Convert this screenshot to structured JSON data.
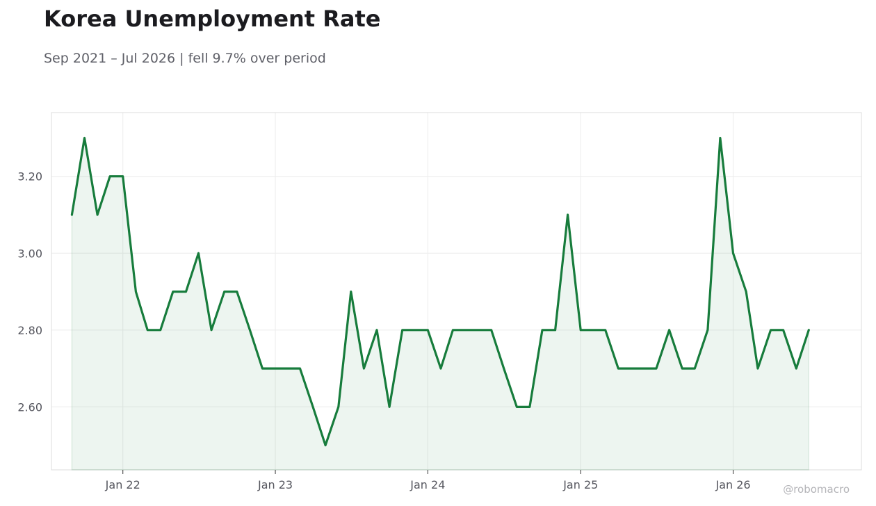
{
  "title": "Korea Unemployment Rate",
  "subtitle": "Sep 2021 – Jul 2026 | fell 9.7% over period",
  "watermark": "@robomacro",
  "colors": {
    "line": "#177c3c",
    "fill": "#177c3c",
    "grid": "#ececec",
    "frame": "#dcdcdc"
  },
  "chart_data": {
    "type": "area",
    "title": "Korea Unemployment Rate",
    "subtitle": "Sep 2021 – Jul 2026 | fell 9.7% over period",
    "xlabel": "",
    "ylabel": "",
    "grid": true,
    "legend": "none",
    "ylim": [
      2.436,
      3.366
    ],
    "xlim": [
      "2021-07-14",
      "2026-11-04"
    ],
    "x_ticks": [
      {
        "date": "2022-01-01",
        "label": "Jan 22"
      },
      {
        "date": "2023-01-01",
        "label": "Jan 23"
      },
      {
        "date": "2024-01-01",
        "label": "Jan 24"
      },
      {
        "date": "2025-01-01",
        "label": "Jan 25"
      },
      {
        "date": "2026-01-01",
        "label": "Jan 26"
      }
    ],
    "y_ticks": [
      {
        "value": 2.6,
        "label": "2.60"
      },
      {
        "value": 2.8,
        "label": "2.80"
      },
      {
        "value": 3.0,
        "label": "3.00"
      },
      {
        "value": 3.2,
        "label": "3.20"
      }
    ],
    "x": [
      "2021-09",
      "2021-10",
      "2021-11",
      "2021-12",
      "2022-01",
      "2022-02",
      "2022-03",
      "2022-04",
      "2022-05",
      "2022-06",
      "2022-07",
      "2022-08",
      "2022-09",
      "2022-10",
      "2022-11",
      "2022-12",
      "2023-01",
      "2023-02",
      "2023-03",
      "2023-04",
      "2023-05",
      "2023-06",
      "2023-07",
      "2023-08",
      "2023-09",
      "2023-10",
      "2023-11",
      "2023-12",
      "2024-01",
      "2024-02",
      "2024-03",
      "2024-04",
      "2024-05",
      "2024-06",
      "2024-07",
      "2024-08",
      "2024-09",
      "2024-10",
      "2024-11",
      "2024-12",
      "2025-01",
      "2025-02",
      "2025-03",
      "2025-04",
      "2025-05",
      "2025-06",
      "2025-07",
      "2025-08",
      "2025-09",
      "2025-10",
      "2025-11",
      "2025-12",
      "2026-01",
      "2026-02",
      "2026-03",
      "2026-04",
      "2026-05",
      "2026-06",
      "2026-07"
    ],
    "series": [
      {
        "values": [
          3.1,
          3.3,
          3.1,
          3.2,
          3.2,
          2.9,
          2.8,
          2.8,
          2.9,
          2.9,
          3.0,
          2.8,
          2.9,
          2.9,
          2.8,
          2.7,
          2.7,
          2.7,
          2.7,
          2.6,
          2.5,
          2.6,
          2.9,
          2.7,
          2.8,
          2.6,
          2.8,
          2.8,
          2.8,
          2.7,
          2.8,
          2.8,
          2.8,
          2.8,
          2.7,
          2.6,
          2.6,
          2.8,
          2.8,
          3.1,
          2.8,
          2.8,
          2.8,
          2.7,
          2.7,
          2.7,
          2.7,
          2.8,
          2.7,
          2.7,
          2.8,
          3.3,
          3.0,
          2.9,
          2.7,
          2.8,
          2.8,
          2.7,
          2.8
        ]
      }
    ]
  }
}
